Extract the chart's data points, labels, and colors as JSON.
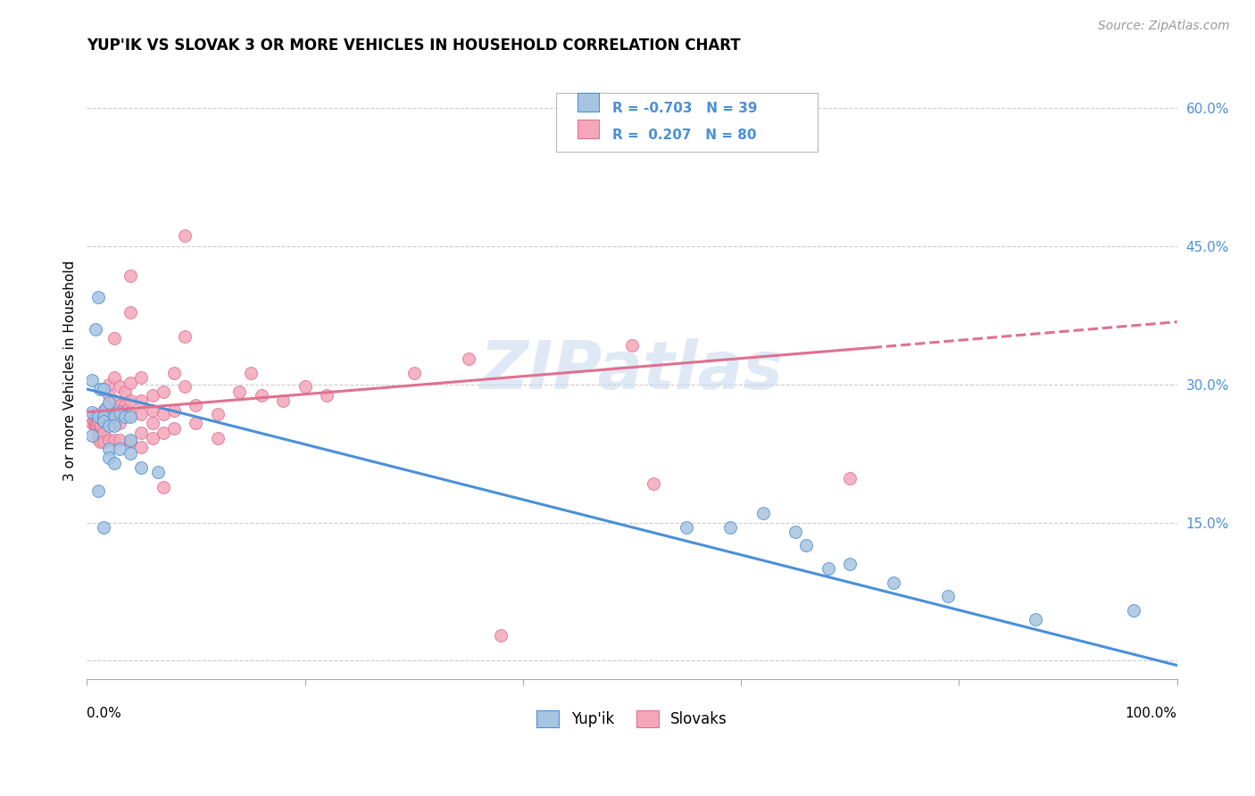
{
  "title": "YUP'IK VS SLOVAK 3 OR MORE VEHICLES IN HOUSEHOLD CORRELATION CHART",
  "source": "Source: ZipAtlas.com",
  "ylabel": "3 or more Vehicles in Household",
  "watermark": "ZIPatlas",
  "legend_blue_label": "Yup'ik",
  "legend_pink_label": "Slovaks",
  "legend_blue_r": "R = -0.703",
  "legend_blue_n": "N = 39",
  "legend_pink_r": "R =  0.207",
  "legend_pink_n": "N = 80",
  "blue_color": "#a8c4e0",
  "pink_color": "#f4a7b9",
  "blue_line_color": "#4a90d9",
  "pink_line_color": "#e07090",
  "r_n_color": "#4a90d9",
  "blue_scatter": [
    [
      0.005,
      0.305
    ],
    [
      0.008,
      0.36
    ],
    [
      0.01,
      0.395
    ],
    [
      0.012,
      0.295
    ],
    [
      0.015,
      0.295
    ],
    [
      0.018,
      0.275
    ],
    [
      0.005,
      0.27
    ],
    [
      0.01,
      0.265
    ],
    [
      0.015,
      0.265
    ],
    [
      0.02,
      0.28
    ],
    [
      0.025,
      0.265
    ],
    [
      0.03,
      0.27
    ],
    [
      0.015,
      0.26
    ],
    [
      0.02,
      0.255
    ],
    [
      0.025,
      0.255
    ],
    [
      0.02,
      0.23
    ],
    [
      0.03,
      0.23
    ],
    [
      0.04,
      0.24
    ],
    [
      0.035,
      0.265
    ],
    [
      0.04,
      0.265
    ],
    [
      0.005,
      0.245
    ],
    [
      0.01,
      0.185
    ],
    [
      0.015,
      0.145
    ],
    [
      0.04,
      0.225
    ],
    [
      0.02,
      0.22
    ],
    [
      0.025,
      0.215
    ],
    [
      0.05,
      0.21
    ],
    [
      0.065,
      0.205
    ],
    [
      0.55,
      0.145
    ],
    [
      0.59,
      0.145
    ],
    [
      0.62,
      0.16
    ],
    [
      0.65,
      0.14
    ],
    [
      0.66,
      0.125
    ],
    [
      0.68,
      0.1
    ],
    [
      0.7,
      0.105
    ],
    [
      0.74,
      0.085
    ],
    [
      0.79,
      0.07
    ],
    [
      0.87,
      0.045
    ],
    [
      0.96,
      0.055
    ]
  ],
  "pink_scatter": [
    [
      0.005,
      0.258
    ],
    [
      0.006,
      0.262
    ],
    [
      0.007,
      0.256
    ],
    [
      0.007,
      0.268
    ],
    [
      0.008,
      0.256
    ],
    [
      0.008,
      0.26
    ],
    [
      0.009,
      0.256
    ],
    [
      0.009,
      0.266
    ],
    [
      0.01,
      0.256
    ],
    [
      0.01,
      0.26
    ],
    [
      0.01,
      0.248
    ],
    [
      0.01,
      0.241
    ],
    [
      0.012,
      0.248
    ],
    [
      0.012,
      0.238
    ],
    [
      0.013,
      0.255
    ],
    [
      0.014,
      0.262
    ],
    [
      0.015,
      0.272
    ],
    [
      0.015,
      0.265
    ],
    [
      0.015,
      0.248
    ],
    [
      0.015,
      0.238
    ],
    [
      0.02,
      0.3
    ],
    [
      0.02,
      0.288
    ],
    [
      0.02,
      0.272
    ],
    [
      0.02,
      0.26
    ],
    [
      0.02,
      0.24
    ],
    [
      0.025,
      0.35
    ],
    [
      0.025,
      0.308
    ],
    [
      0.025,
      0.282
    ],
    [
      0.025,
      0.272
    ],
    [
      0.025,
      0.258
    ],
    [
      0.025,
      0.24
    ],
    [
      0.03,
      0.298
    ],
    [
      0.03,
      0.278
    ],
    [
      0.03,
      0.268
    ],
    [
      0.03,
      0.258
    ],
    [
      0.03,
      0.24
    ],
    [
      0.035,
      0.292
    ],
    [
      0.035,
      0.278
    ],
    [
      0.035,
      0.272
    ],
    [
      0.04,
      0.418
    ],
    [
      0.04,
      0.378
    ],
    [
      0.04,
      0.302
    ],
    [
      0.04,
      0.282
    ],
    [
      0.04,
      0.268
    ],
    [
      0.04,
      0.238
    ],
    [
      0.05,
      0.308
    ],
    [
      0.05,
      0.282
    ],
    [
      0.05,
      0.268
    ],
    [
      0.05,
      0.248
    ],
    [
      0.05,
      0.232
    ],
    [
      0.06,
      0.288
    ],
    [
      0.06,
      0.272
    ],
    [
      0.06,
      0.258
    ],
    [
      0.06,
      0.242
    ],
    [
      0.07,
      0.292
    ],
    [
      0.07,
      0.268
    ],
    [
      0.07,
      0.248
    ],
    [
      0.07,
      0.188
    ],
    [
      0.08,
      0.312
    ],
    [
      0.08,
      0.272
    ],
    [
      0.08,
      0.252
    ],
    [
      0.09,
      0.462
    ],
    [
      0.09,
      0.352
    ],
    [
      0.09,
      0.298
    ],
    [
      0.1,
      0.278
    ],
    [
      0.1,
      0.258
    ],
    [
      0.12,
      0.268
    ],
    [
      0.12,
      0.242
    ],
    [
      0.14,
      0.292
    ],
    [
      0.15,
      0.312
    ],
    [
      0.16,
      0.288
    ],
    [
      0.18,
      0.282
    ],
    [
      0.2,
      0.298
    ],
    [
      0.22,
      0.288
    ],
    [
      0.3,
      0.312
    ],
    [
      0.35,
      0.328
    ],
    [
      0.5,
      0.342
    ],
    [
      0.52,
      0.192
    ],
    [
      0.7,
      0.198
    ],
    [
      0.38,
      0.028
    ]
  ],
  "blue_line": {
    "x0": 0.0,
    "y0": 0.295,
    "x1": 1.0,
    "y1": -0.005
  },
  "pink_line_solid": {
    "x0": 0.0,
    "y0": 0.27,
    "x1": 0.72,
    "y1": 0.34
  },
  "pink_line_dash": {
    "x0": 0.72,
    "y0": 0.34,
    "x1": 1.0,
    "y1": 0.368
  },
  "xlim": [
    0.0,
    1.0
  ],
  "ylim": [
    -0.02,
    0.65
  ],
  "y_ticks": [
    0.0,
    0.15,
    0.3,
    0.45,
    0.6
  ],
  "y_tick_labels": [
    "",
    "15.0%",
    "30.0%",
    "45.0%",
    "60.0%"
  ],
  "title_fontsize": 12,
  "source_fontsize": 10,
  "tick_fontsize": 11,
  "ylabel_fontsize": 11
}
